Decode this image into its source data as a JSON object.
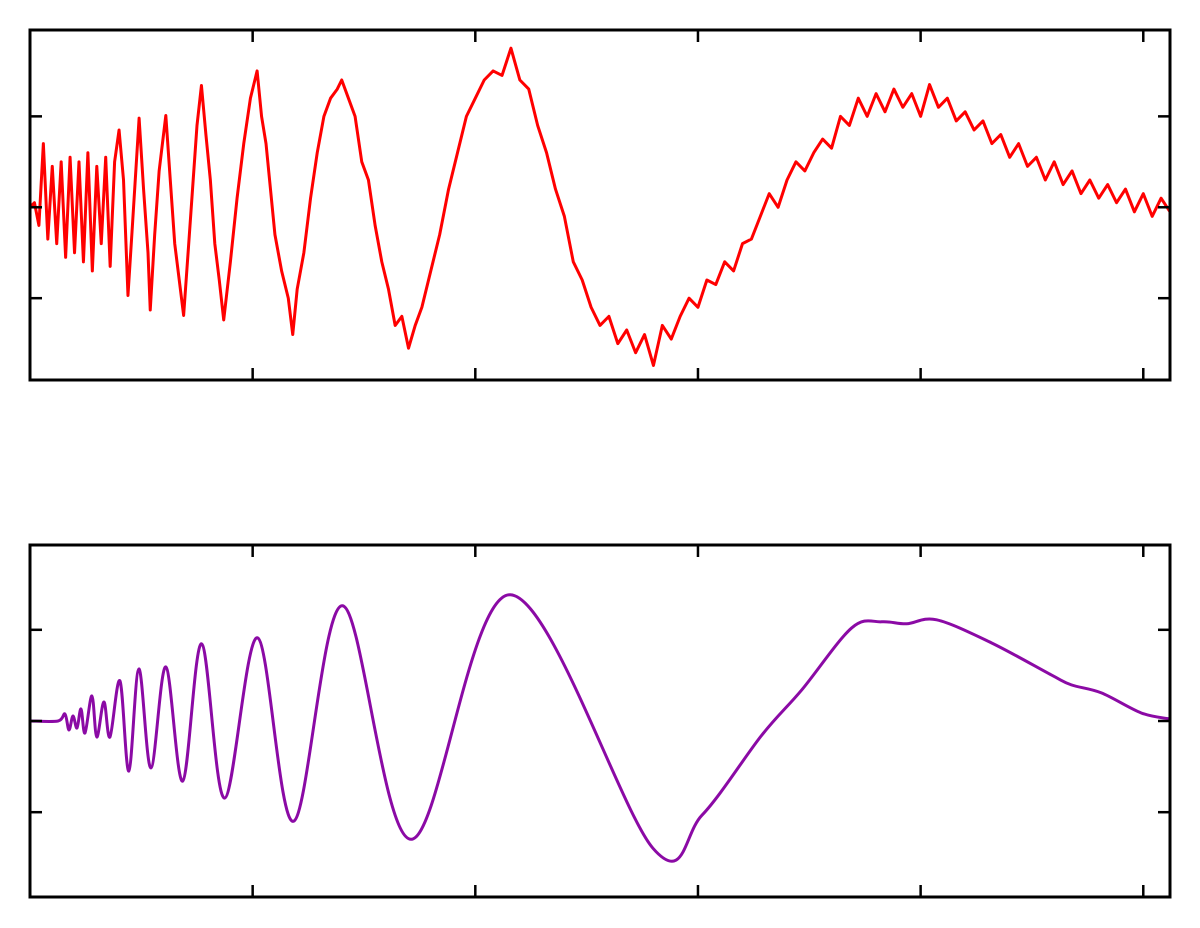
{
  "chart_data": [
    {
      "type": "line",
      "smooth": false,
      "x": [
        0,
        0.02,
        0.04,
        0.06,
        0.08,
        0.1,
        0.12,
        0.14,
        0.16,
        0.18,
        0.2,
        0.22,
        0.24,
        0.26,
        0.28,
        0.3,
        0.32,
        0.34,
        0.36,
        0.38,
        0.4,
        0.42,
        0.44,
        0.46,
        0.49,
        0.51,
        0.53,
        0.54,
        0.56,
        0.58,
        0.61,
        0.63,
        0.65,
        0.69,
        0.71,
        0.73,
        0.75,
        0.77,
        0.79,
        0.81,
        0.83,
        0.85,
        0.87,
        0.9,
        0.93,
        0.96,
        0.99,
        1.02,
        1.04,
        1.06,
        1.08,
        1.1,
        1.13,
        1.16,
        1.18,
        1.2,
        1.23,
        1.26,
        1.29,
        1.32,
        1.35,
        1.38,
        1.4,
        1.43,
        1.46,
        1.49,
        1.52,
        1.55,
        1.58,
        1.61,
        1.64,
        1.67,
        1.7,
        1.73,
        1.76,
        1.8,
        1.84,
        1.88,
        1.92,
        1.96,
        2.0,
        2.04,
        2.08,
        2.12,
        2.16,
        2.2,
        2.24,
        2.28,
        2.32,
        2.36,
        2.4,
        2.44,
        2.48,
        2.52,
        2.56,
        2.6,
        2.64,
        2.68,
        2.72,
        2.76,
        2.8,
        2.84,
        2.88,
        2.92,
        2.96,
        3.0,
        3.04,
        3.08,
        3.12,
        3.16,
        3.2,
        3.24,
        3.28,
        3.32,
        3.36,
        3.4,
        3.44,
        3.48,
        3.52,
        3.56,
        3.6,
        3.64,
        3.68,
        3.72,
        3.76,
        3.8,
        3.84,
        3.88,
        3.92,
        3.96,
        4.0,
        4.04,
        4.08,
        4.12,
        4.16,
        4.2,
        4.24,
        4.28,
        4.32,
        4.36,
        4.4,
        4.44,
        4.48,
        4.52,
        4.56,
        4.6,
        4.64,
        4.68,
        4.72,
        4.76,
        4.8,
        4.84,
        4.88,
        4.92,
        4.96,
        5.0,
        5.04,
        5.08,
        5.12
      ],
      "series": [
        {
          "color": "#ff0000",
          "values": [
            0,
            0.05,
            -0.2,
            0.7,
            -0.35,
            0.45,
            -0.4,
            0.5,
            -0.55,
            0.55,
            -0.5,
            0.5,
            -0.6,
            0.6,
            -0.7,
            0.45,
            -0.4,
            0.55,
            -0.65,
            0.5,
            0.85,
            0.3,
            -0.97,
            -0.2,
            0.98,
            0.2,
            -0.5,
            -1.13,
            -0.3,
            0.4,
            1.01,
            0.3,
            -0.4,
            -1.19,
            -0.5,
            0.2,
            0.9,
            1.34,
            0.8,
            0.3,
            -0.4,
            -0.8,
            -1.24,
            -0.6,
            0.1,
            0.7,
            1.2,
            1.5,
            1.0,
            0.7,
            0.2,
            -0.3,
            -0.7,
            -1.0,
            -1.4,
            -0.9,
            -0.5,
            0.1,
            0.6,
            1.0,
            1.2,
            1.3,
            1.4,
            1.2,
            1.0,
            0.5,
            0.3,
            -0.2,
            -0.6,
            -0.9,
            -1.3,
            -1.2,
            -1.55,
            -1.3,
            -1.1,
            -0.7,
            -0.3,
            0.2,
            0.6,
            1.0,
            1.2,
            1.4,
            1.5,
            1.45,
            1.75,
            1.4,
            1.3,
            0.9,
            0.6,
            0.2,
            -0.1,
            -0.6,
            -0.8,
            -1.1,
            -1.3,
            -1.2,
            -1.5,
            -1.35,
            -1.6,
            -1.4,
            -1.74,
            -1.3,
            -1.45,
            -1.2,
            -1.0,
            -1.1,
            -0.8,
            -0.85,
            -0.6,
            -0.7,
            -0.4,
            -0.35,
            -0.1,
            0.15,
            0.0,
            0.3,
            0.5,
            0.4,
            0.6,
            0.75,
            0.65,
            1.0,
            0.9,
            1.2,
            1.0,
            1.25,
            1.05,
            1.3,
            1.1,
            1.25,
            1.0,
            1.35,
            1.1,
            1.2,
            0.95,
            1.05,
            0.85,
            0.95,
            0.7,
            0.8,
            0.55,
            0.7,
            0.45,
            0.55,
            0.3,
            0.5,
            0.25,
            0.4,
            0.15,
            0.3,
            0.1,
            0.25,
            0.05,
            0.2,
            -0.05,
            0.15,
            -0.1,
            0.1,
            -0.05
          ]
        }
      ],
      "xlim": [
        0,
        5.12
      ],
      "xticks": [
        1,
        2,
        3,
        4,
        5
      ],
      "ylim": [
        -1.9,
        1.95
      ],
      "yticks": [
        -1,
        0,
        1
      ]
    },
    {
      "type": "line",
      "smooth": true,
      "x": [
        0,
        0.126,
        0.157,
        0.175,
        0.193,
        0.211,
        0.229,
        0.247,
        0.278,
        0.3,
        0.332,
        0.359,
        0.404,
        0.444,
        0.489,
        0.543,
        0.61,
        0.686,
        0.771,
        0.874,
        1.022,
        1.184,
        1.404,
        1.713,
        2.157,
        2.798,
        3.018,
        3.287,
        3.466,
        3.691,
        3.825,
        3.937,
        4.072,
        4.318,
        4.587,
        4.677,
        4.812,
        4.991,
        5.12
      ],
      "series": [
        {
          "color": "#8b0aa5",
          "values": [
            0,
            0,
            0.077,
            -0.099,
            0.055,
            -0.077,
            0.132,
            -0.132,
            0.275,
            -0.176,
            0.209,
            -0.176,
            0.44,
            -0.549,
            0.571,
            -0.516,
            0.593,
            -0.659,
            0.846,
            -0.846,
            0.912,
            -1.099,
            1.264,
            -1.297,
            1.385,
            -1.396,
            -1.033,
            -0.154,
            0.341,
            1.022,
            1.088,
            1.066,
            1.11,
            0.857,
            0.505,
            0.396,
            0.308,
            0.088,
            0.022
          ]
        }
      ],
      "xlim": [
        0,
        5.12
      ],
      "xticks": [
        1,
        2,
        3,
        4,
        5
      ],
      "ylim": [
        -1.93,
        1.93
      ],
      "yticks": [
        -1,
        0,
        1
      ]
    }
  ]
}
